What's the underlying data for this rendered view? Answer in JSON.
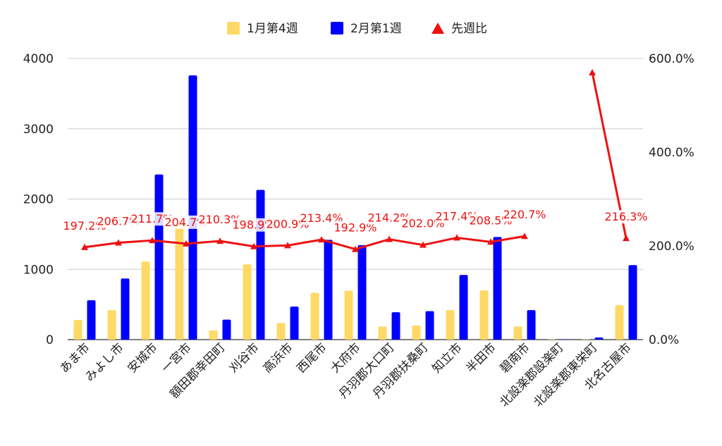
{
  "chart_data": {
    "type": "bar",
    "categories": [
      "あま市",
      "みよし市",
      "安城市",
      "一宮市",
      "額田郡幸田町",
      "刈谷市",
      "高浜市",
      "西尾市",
      "大府市",
      "丹羽郡大口町",
      "丹羽郡扶桑町",
      "知立市",
      "半田市",
      "碧南市",
      "北設楽郡設楽町",
      "北設楽郡東栄町",
      "北名古屋市"
    ],
    "series": [
      {
        "name": "1月第4週",
        "axis": "left",
        "color": "#ffd966",
        "values": [
          280,
          420,
          1110,
          1660,
          130,
          1070,
          235,
          665,
          695,
          185,
          200,
          420,
          700,
          185,
          0,
          5,
          490
        ]
      },
      {
        "name": "2月第1週",
        "axis": "left",
        "color": "#0000ff",
        "values": [
          560,
          870,
          2350,
          3760,
          285,
          2130,
          470,
          1420,
          1345,
          390,
          405,
          920,
          1460,
          420,
          0,
          30,
          1060
        ]
      },
      {
        "name": "先週比",
        "type": "line",
        "axis": "right",
        "color": "#ee1111",
        "values": [
          197.2,
          206.7,
          211.7,
          204.7,
          210.3,
          198.9,
          200.9,
          213.4,
          192.9,
          214.2,
          202.0,
          217.4,
          208.5,
          220.7,
          null,
          570.0,
          216.3
        ],
        "labels": [
          "197.2%",
          "206.7%",
          "211.7%",
          "204.7%",
          "210.3%",
          "198.9%",
          "200.9%",
          "213.4%",
          "192.9%",
          "214.2%",
          "202.0%",
          "217.4%",
          "208.5%",
          "220.7%",
          "",
          "",
          "216.3%"
        ]
      }
    ],
    "y_left": {
      "min": 0,
      "max": 4000,
      "ticks": [
        0,
        1000,
        2000,
        3000,
        4000
      ]
    },
    "y_right": {
      "min": 0,
      "max": 600,
      "ticks": [
        "0.0%",
        "200.0%",
        "400.0%",
        "600.0%"
      ]
    },
    "grid": true,
    "legend_position": "top"
  }
}
